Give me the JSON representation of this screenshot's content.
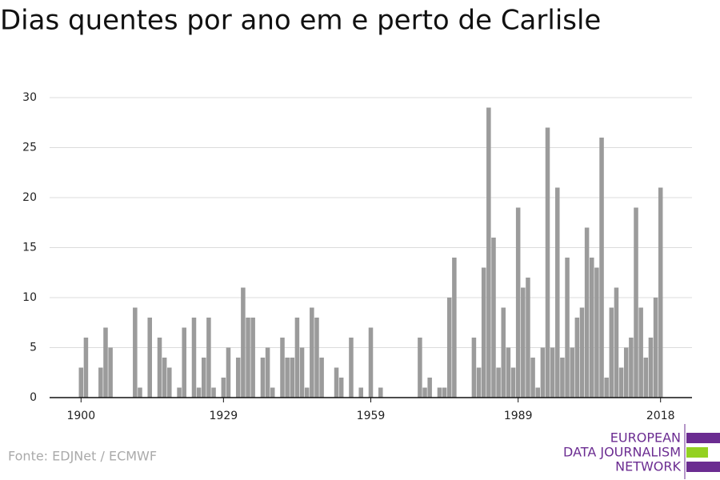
{
  "chart_data": {
    "type": "bar",
    "title": "Dias quentes por ano em e perto de Carlisle",
    "source": "Fonte: EDJNet / ECMWF",
    "logo": [
      "EUROPEAN",
      "DATA JOURNALISM",
      "NETWORK"
    ],
    "color": "#9b9b9b",
    "grid": true,
    "x": [
      1900,
      1901,
      1902,
      1903,
      1904,
      1905,
      1906,
      1907,
      1908,
      1909,
      1910,
      1911,
      1912,
      1913,
      1914,
      1915,
      1916,
      1917,
      1918,
      1919,
      1920,
      1921,
      1922,
      1923,
      1924,
      1925,
      1926,
      1927,
      1928,
      1929,
      1930,
      1931,
      1932,
      1933,
      1934,
      1935,
      1936,
      1937,
      1938,
      1939,
      1940,
      1941,
      1942,
      1943,
      1944,
      1945,
      1946,
      1947,
      1948,
      1949,
      1950,
      1951,
      1952,
      1953,
      1954,
      1955,
      1956,
      1957,
      1958,
      1959,
      1960,
      1961,
      1962,
      1963,
      1964,
      1965,
      1966,
      1967,
      1968,
      1969,
      1970,
      1971,
      1972,
      1973,
      1974,
      1975,
      1976,
      1977,
      1978,
      1979,
      1980,
      1981,
      1982,
      1983,
      1984,
      1985,
      1986,
      1987,
      1988,
      1989,
      1990,
      1991,
      1992,
      1993,
      1994,
      1995,
      1996,
      1997,
      1998,
      1999,
      2000,
      2001,
      2002,
      2003,
      2004,
      2005,
      2006,
      2007,
      2008,
      2009,
      2010,
      2011,
      2012,
      2013,
      2014,
      2015,
      2016,
      2017,
      2018
    ],
    "values": [
      3,
      6,
      0,
      0,
      3,
      7,
      5,
      0,
      0,
      0,
      0,
      9,
      1,
      0,
      8,
      0,
      6,
      4,
      3,
      0,
      1,
      7,
      0,
      8,
      1,
      4,
      8,
      1,
      0,
      2,
      5,
      0,
      4,
      11,
      8,
      8,
      0,
      4,
      5,
      1,
      0,
      6,
      4,
      4,
      8,
      5,
      1,
      9,
      8,
      4,
      0,
      0,
      3,
      2,
      0,
      6,
      0,
      1,
      0,
      7,
      0,
      1,
      0,
      0,
      0,
      0,
      0,
      0,
      0,
      6,
      1,
      2,
      0,
      1,
      1,
      10,
      14,
      0,
      0,
      0,
      6,
      3,
      13,
      29,
      16,
      3,
      9,
      5,
      3,
      19,
      11,
      12,
      4,
      1,
      5,
      27,
      5,
      21,
      4,
      14,
      5,
      8,
      9,
      17,
      14,
      13,
      26,
      2,
      9,
      11,
      3,
      5,
      6,
      19,
      9,
      4,
      6,
      10,
      21
    ],
    "xlim": [
      1893.6,
      2024.4
    ],
    "xticks": [
      1900,
      1929,
      1959,
      1989,
      2018
    ],
    "ylim": [
      0,
      30
    ],
    "yticks": [
      0,
      5,
      10,
      15,
      20,
      25,
      30
    ]
  }
}
